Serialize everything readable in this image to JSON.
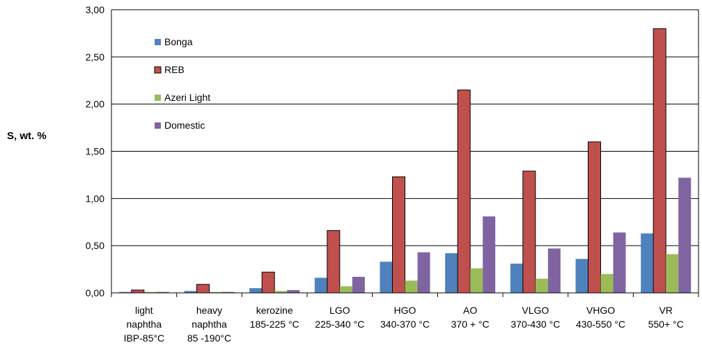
{
  "chart_data": {
    "type": "bar",
    "title": "",
    "xlabel": "",
    "ylabel": "S, wt. %",
    "ylim": [
      0,
      3
    ],
    "yticks": [
      "0,00",
      "0,50",
      "1,00",
      "1,50",
      "2,00",
      "2,50",
      "3,00"
    ],
    "grid": true,
    "legend_position": "top-left",
    "categories": [
      [
        "light",
        "naphtha",
        "IBP-85°C"
      ],
      [
        "heavy",
        "naphtha",
        "85 -190°C"
      ],
      [
        "kerozine",
        "185-225 °C"
      ],
      [
        "LGO",
        "225-340 °C"
      ],
      [
        "HGO",
        "340-370 °C"
      ],
      [
        "AO",
        "370 + °C"
      ],
      [
        "VLGO",
        "370-430 °C"
      ],
      [
        "VHGO",
        "430-550 °C"
      ],
      [
        "VR",
        "550+ °C"
      ]
    ],
    "series": [
      {
        "name": "Bonga",
        "color": "#4F81BD",
        "values": [
          0.01,
          0.02,
          0.05,
          0.16,
          0.33,
          0.42,
          0.31,
          0.36,
          0.63
        ]
      },
      {
        "name": "REB",
        "color": "#C0504D",
        "values": [
          0.03,
          0.09,
          0.22,
          0.66,
          1.23,
          2.15,
          1.29,
          1.6,
          2.8
        ]
      },
      {
        "name": "Azeri Light",
        "color": "#9BBB59",
        "values": [
          0.01,
          0.01,
          0.02,
          0.07,
          0.13,
          0.26,
          0.15,
          0.2,
          0.41
        ]
      },
      {
        "name": "Domestic",
        "color": "#8064A2",
        "values": [
          0.01,
          0.01,
          0.03,
          0.17,
          0.43,
          0.81,
          0.47,
          0.64,
          1.22
        ]
      }
    ]
  }
}
